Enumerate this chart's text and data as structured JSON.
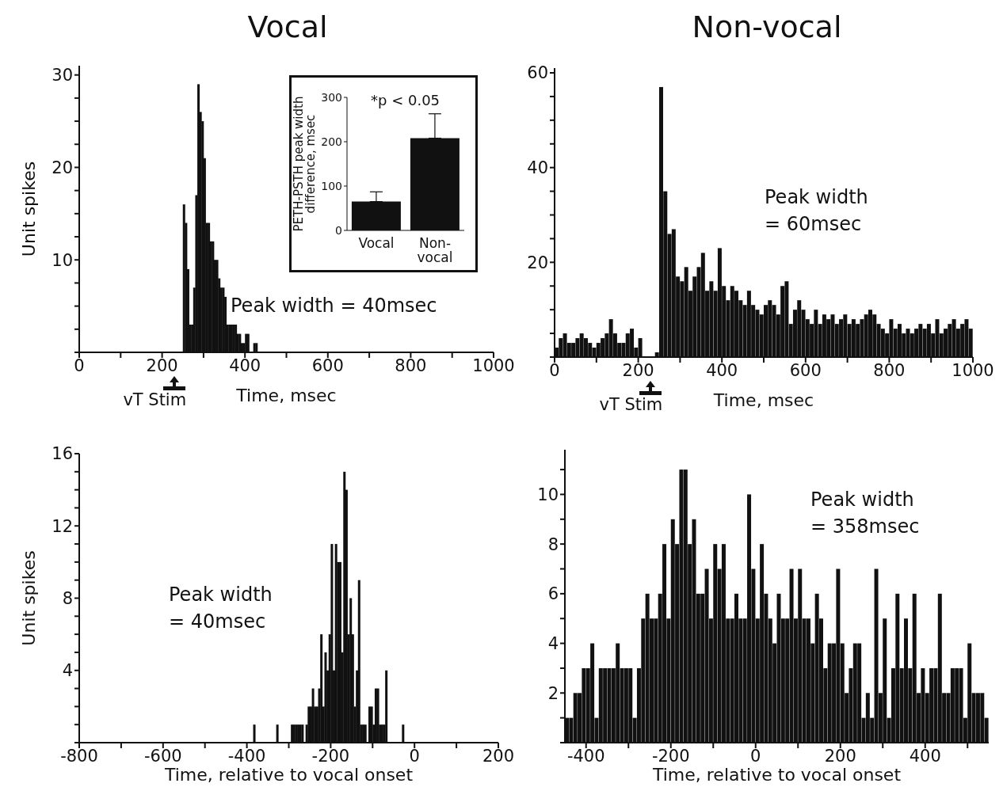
{
  "chart_data": [
    {
      "type": "histogram",
      "title": "Vocal",
      "xlabel": "Time, msec",
      "ylabel": "Unit spikes",
      "color": "#111111",
      "bins": [
        250,
        255,
        260,
        265,
        270,
        275,
        280,
        285,
        290,
        295,
        300,
        305,
        310,
        315,
        320,
        325,
        330,
        335,
        340,
        345,
        350,
        355,
        360,
        365,
        370,
        375,
        380,
        385,
        390,
        395,
        400,
        405,
        410,
        415,
        420,
        425,
        430
      ],
      "values": [
        16,
        14,
        9,
        3,
        3,
        7,
        17,
        29,
        26,
        25,
        21,
        14,
        14,
        12,
        12,
        10,
        10,
        8,
        7,
        7,
        6,
        3,
        3,
        3,
        3,
        3,
        2,
        2,
        1,
        1,
        2,
        2,
        0,
        0,
        1,
        1
      ],
      "xlim": [
        0,
        1000
      ],
      "xticks": [
        0,
        {
          "value": 100,
          "label": null
        },
        200,
        {
          "value": 300,
          "label": null
        },
        400,
        {
          "value": 500,
          "label": null
        },
        600,
        {
          "value": 700,
          "label": null
        },
        800,
        {
          "value": 900,
          "label": null
        },
        1000
      ],
      "ylim": [
        0,
        31
      ],
      "yticks": [
        {
          "value": 0,
          "label": null
        },
        {
          "value": 2.5,
          "label": null
        },
        {
          "value": 5,
          "label": null
        },
        {
          "value": 7.5,
          "label": null
        },
        10,
        {
          "value": 12.5,
          "label": null
        },
        {
          "value": 15,
          "label": null
        },
        {
          "value": 17.5,
          "label": null
        },
        20,
        {
          "value": 22.5,
          "label": null
        },
        {
          "value": 25,
          "label": null
        },
        {
          "value": 27.5,
          "label": null
        },
        30
      ],
      "annotations": [
        "Peak width = 40msec",
        "vT Stim"
      ]
    },
    {
      "type": "bar",
      "ylabel": "PETH-PSTH peak width difference, msec",
      "categories": [
        "Vocal",
        "Non-vocal"
      ],
      "values": [
        65,
        208
      ],
      "errors": [
        [
          65,
          87
        ],
        [
          208,
          263
        ]
      ],
      "color": "#111111",
      "ylim": [
        0,
        300
      ],
      "yticks": [
        0,
        100,
        200,
        300
      ],
      "annotations": [
        "*p < 0.05"
      ]
    },
    {
      "type": "histogram",
      "title": "Non-vocal",
      "xlabel": "Time, msec",
      "color": "#111111",
      "bins": [
        0,
        10,
        20,
        30,
        40,
        50,
        60,
        70,
        80,
        90,
        100,
        110,
        120,
        130,
        140,
        150,
        160,
        170,
        180,
        190,
        200,
        210,
        220,
        230,
        240,
        250,
        260,
        270,
        280,
        290,
        300,
        310,
        320,
        330,
        340,
        350,
        360,
        370,
        380,
        390,
        400,
        410,
        420,
        430,
        440,
        450,
        460,
        470,
        480,
        490,
        500,
        510,
        520,
        530,
        540,
        550,
        560,
        570,
        580,
        590,
        600,
        610,
        620,
        630,
        640,
        650,
        660,
        670,
        680,
        690,
        700,
        710,
        720,
        730,
        740,
        750,
        760,
        770,
        780,
        790,
        800,
        810,
        820,
        830,
        840,
        850,
        860,
        870,
        880,
        890,
        900,
        910,
        920,
        930,
        940,
        950,
        960,
        970,
        980,
        990,
        1000
      ],
      "values": [
        2,
        4,
        5,
        3,
        3,
        4,
        5,
        4,
        3,
        2,
        3,
        4,
        5,
        8,
        5,
        3,
        3,
        5,
        6,
        2,
        4,
        0,
        0,
        0,
        1,
        57,
        35,
        26,
        27,
        17,
        16,
        19,
        14,
        17,
        19,
        22,
        14,
        16,
        14,
        23,
        15,
        12,
        15,
        14,
        12,
        11,
        14,
        11,
        10,
        9,
        11,
        12,
        11,
        9,
        15,
        16,
        7,
        10,
        12,
        10,
        8,
        7,
        10,
        7,
        9,
        8,
        9,
        7,
        8,
        9,
        7,
        8,
        7,
        8,
        9,
        10,
        9,
        7,
        6,
        5,
        8,
        6,
        7,
        5,
        6,
        5,
        6,
        7,
        6,
        7,
        5,
        8,
        5,
        6,
        7,
        8,
        6,
        7,
        8,
        6
      ],
      "xlim": [
        0,
        1000
      ],
      "xticks": [
        0,
        {
          "value": 100,
          "label": null
        },
        200,
        {
          "value": 300,
          "label": null
        },
        400,
        {
          "value": 500,
          "label": null
        },
        600,
        {
          "value": 700,
          "label": null
        },
        800,
        {
          "value": 900,
          "label": null
        },
        1000
      ],
      "ylim": [
        0,
        61
      ],
      "yticks": [
        {
          "value": 0,
          "label": null
        },
        {
          "value": 5,
          "label": null
        },
        {
          "value": 10,
          "label": null
        },
        {
          "value": 15,
          "label": null
        },
        20,
        {
          "value": 25,
          "label": null
        },
        {
          "value": 30,
          "label": null
        },
        {
          "value": 35,
          "label": null
        },
        40,
        {
          "value": 45,
          "label": null
        },
        {
          "value": 50,
          "label": null
        },
        {
          "value": 55,
          "label": null
        },
        60
      ],
      "annotations": [
        "Peak width\n= 60msec",
        "vT Stim"
      ]
    },
    {
      "type": "histogram",
      "xlabel": "Time, relative to vocal onset",
      "ylabel": "Unit spikes",
      "color": "#111111",
      "bins": [
        -385,
        -380,
        -375,
        -370,
        -365,
        -360,
        -355,
        -350,
        -345,
        -340,
        -335,
        -330,
        -325,
        -320,
        -315,
        -310,
        -305,
        -300,
        -295,
        -290,
        -285,
        -280,
        -275,
        -270,
        -265,
        -260,
        -255,
        -250,
        -245,
        -240,
        -235,
        -230,
        -225,
        -220,
        -215,
        -210,
        -205,
        -200,
        -195,
        -190,
        -185,
        -180,
        -175,
        -170,
        -165,
        -160,
        -155,
        -150,
        -145,
        -140,
        -135,
        -130,
        -125,
        -120,
        -115,
        -110,
        -105,
        -100,
        -95,
        -90,
        -85,
        -80,
        -75,
        -70,
        -65,
        -60,
        -55,
        -50,
        -45,
        -40,
        -35,
        -30,
        -25
      ],
      "values": [
        1,
        0,
        0,
        0,
        0,
        0,
        0,
        0,
        0,
        0,
        0,
        1,
        0,
        0,
        0,
        0,
        0,
        0,
        1,
        1,
        1,
        1,
        1,
        1,
        0,
        1,
        2,
        2,
        3,
        2,
        2,
        3,
        6,
        2,
        5,
        4,
        6,
        11,
        4,
        11,
        10,
        10,
        5,
        15,
        14,
        6,
        8,
        6,
        2,
        4,
        9,
        1,
        1,
        1,
        0,
        2,
        2,
        1,
        3,
        3,
        1,
        1,
        1,
        4,
        0,
        0,
        0,
        0,
        0,
        0,
        0,
        1
      ],
      "xlim": [
        -800,
        200
      ],
      "xticks": [
        -800,
        {
          "value": -700,
          "label": null
        },
        -600,
        {
          "value": -500,
          "label": null
        },
        -400,
        {
          "value": -300,
          "label": null
        },
        -200,
        {
          "value": -100,
          "label": null
        },
        0,
        {
          "value": 100,
          "label": null
        },
        200
      ],
      "ylim": [
        0,
        16
      ],
      "yticks": [
        {
          "value": 0,
          "label": null
        },
        {
          "value": 1,
          "label": null
        },
        {
          "value": 2,
          "label": null
        },
        {
          "value": 3,
          "label": null
        },
        4,
        {
          "value": 5,
          "label": null
        },
        {
          "value": 6,
          "label": null
        },
        {
          "value": 7,
          "label": null
        },
        8,
        {
          "value": 9,
          "label": null
        },
        {
          "value": 10,
          "label": null
        },
        {
          "value": 11,
          "label": null
        },
        12,
        {
          "value": 13,
          "label": null
        },
        {
          "value": 14,
          "label": null
        },
        {
          "value": 15,
          "label": null
        },
        16
      ],
      "annotations": [
        "Peak width\n= 40msec"
      ]
    },
    {
      "type": "histogram",
      "xlabel": "Time, relative to vocal onset",
      "color": "#111111",
      "bins": [
        -450,
        -440,
        -430,
        -420,
        -410,
        -400,
        -390,
        -380,
        -370,
        -360,
        -350,
        -340,
        -330,
        -320,
        -310,
        -300,
        -290,
        -280,
        -270,
        -260,
        -250,
        -240,
        -230,
        -220,
        -210,
        -200,
        -190,
        -180,
        -170,
        -160,
        -150,
        -140,
        -130,
        -120,
        -110,
        -100,
        -90,
        -80,
        -70,
        -60,
        -50,
        -40,
        -30,
        -20,
        -10,
        0,
        10,
        20,
        30,
        40,
        50,
        60,
        70,
        80,
        90,
        100,
        110,
        120,
        130,
        140,
        150,
        160,
        170,
        180,
        190,
        200,
        210,
        220,
        230,
        240,
        250,
        260,
        270,
        280,
        290,
        300,
        310,
        320,
        330,
        340,
        350,
        360,
        370,
        380,
        390,
        400,
        410,
        420,
        430,
        440,
        450,
        460,
        470,
        480,
        490,
        500,
        510,
        520,
        530,
        540,
        550
      ],
      "values": [
        1,
        1,
        2,
        2,
        3,
        3,
        4,
        1,
        3,
        3,
        3,
        3,
        4,
        3,
        3,
        3,
        1,
        3,
        5,
        6,
        5,
        5,
        6,
        8,
        5,
        9,
        8,
        11,
        11,
        8,
        9,
        6,
        6,
        7,
        5,
        8,
        7,
        8,
        5,
        5,
        6,
        5,
        5,
        10,
        7,
        5,
        8,
        6,
        5,
        4,
        6,
        5,
        5,
        7,
        5,
        7,
        5,
        5,
        4,
        6,
        5,
        3,
        4,
        4,
        7,
        4,
        2,
        3,
        4,
        4,
        1,
        2,
        1,
        7,
        2,
        5,
        1,
        3,
        6,
        3,
        5,
        3,
        6,
        2,
        3,
        2,
        3,
        3,
        6,
        2,
        2,
        3,
        3,
        3,
        1,
        4,
        2,
        2,
        2,
        1
      ],
      "xlim": [
        -450,
        550
      ],
      "xticks": [
        -400,
        {
          "value": -300,
          "label": null
        },
        -200,
        {
          "value": -100,
          "label": null
        },
        0,
        {
          "value": 100,
          "label": null
        },
        200,
        {
          "value": 300,
          "label": null
        },
        400,
        {
          "value": 500,
          "label": null
        }
      ],
      "ylim": [
        0,
        11.8
      ],
      "yticks": [
        {
          "value": 0,
          "label": null
        },
        {
          "value": 1,
          "label": null
        },
        2,
        {
          "value": 3,
          "label": null
        },
        4,
        {
          "value": 5,
          "label": null
        },
        6,
        {
          "value": 7,
          "label": null
        },
        8,
        {
          "value": 9,
          "label": null
        },
        10,
        {
          "value": 11,
          "label": null
        }
      ],
      "annotations": [
        "Peak width\n= 358msec"
      ]
    }
  ]
}
